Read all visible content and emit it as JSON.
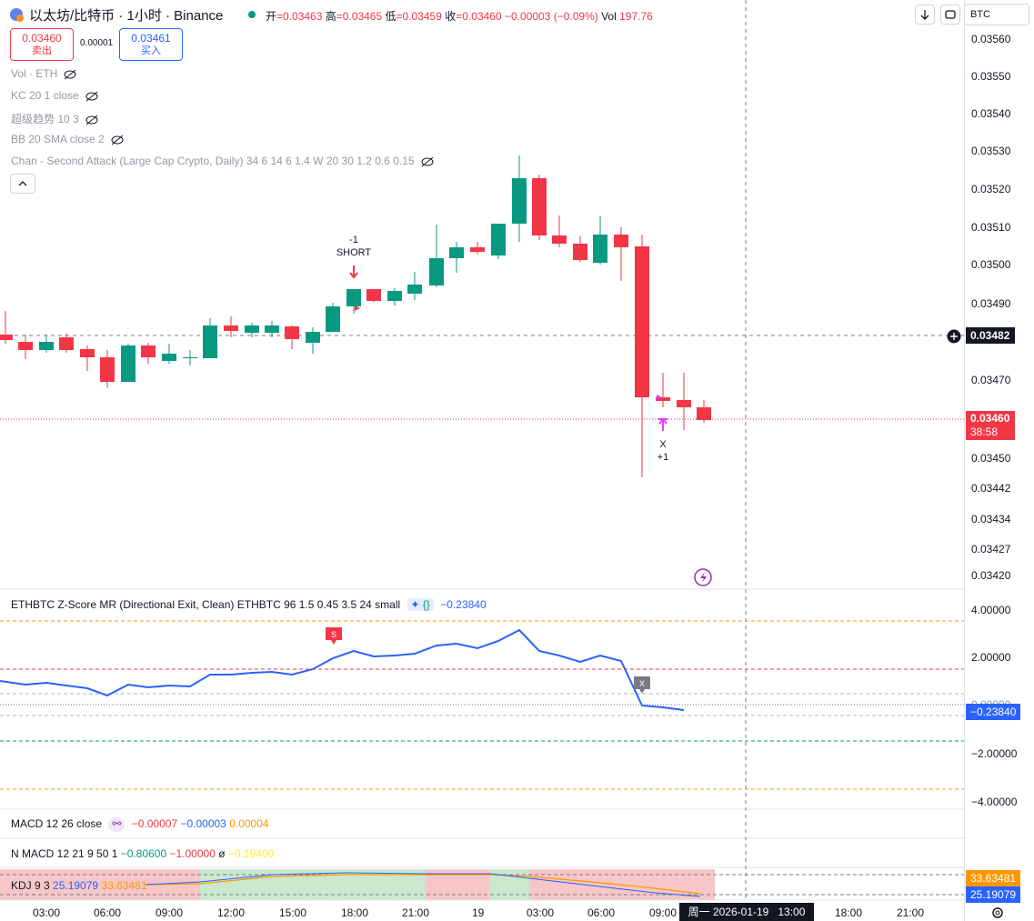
{
  "header": {
    "title": "以太坊/比特币 · 1小时 · Binance",
    "ohlc": {
      "open_label": "开",
      "open": "=0.03463",
      "high_label": "高",
      "high": "=0.03465",
      "low_label": "低",
      "low": "=0.03459",
      "close_label": "收",
      "close": "=0.03460",
      "change": "−0.00003 (−0.09%)",
      "vol_label": "Vol",
      "vol": "197.76"
    },
    "symbol_select": "BTC"
  },
  "trade": {
    "sell_price": "0.03460",
    "sell_label": "卖出",
    "spread": "0.00001",
    "buy_price": "0.03461",
    "buy_label": "买入"
  },
  "indicators": [
    "Vol · ETH",
    "KC 20 1 close",
    "超级趋势 10 3",
    "BB 20 SMA close 2",
    "Chan - Second Attack (Large Cap Crypto, Daily) 34 6 14 6 1.4 W 20 30 1.2 0.6 0.15"
  ],
  "price_axis": [
    "0.03560",
    "0.03550",
    "0.03540",
    "0.03530",
    "0.03520",
    "0.03510",
    "0.03500",
    "0.03490",
    "0.03470",
    "0.03450",
    "0.03442",
    "0.03434",
    "0.03427",
    "0.03420"
  ],
  "crosshair_price": "0.03482",
  "last_price": "0.03460",
  "countdown": "38:58",
  "signals": {
    "short_qty": "-1",
    "short_label": "SHORT",
    "exit_label": "X",
    "exit_qty": "+1"
  },
  "zscore": {
    "title": "ETHBTC Z-Score MR (Directional Exit, Clean)",
    "params": "ETHBTC 96 1.5 0.45 3.5 24 small",
    "value": "−0.23840",
    "axis": [
      "4.00000",
      "2.00000",
      "0.00000",
      "−2.00000",
      "−4.00000"
    ],
    "marker_s": "S",
    "marker_x": "X"
  },
  "macd": {
    "title": "MACD 12 26 close",
    "v1": "−0.00007",
    "v2": "−0.00003",
    "v3": "0.00004"
  },
  "nmacd": {
    "title": "N MACD 12 21 9 50 1",
    "v1": "−0.80600",
    "v2": "−1.00000",
    "sep": "ø",
    "v3": "−0.19400"
  },
  "kdj": {
    "title": "KDJ 9 3",
    "v1": "25.19079",
    "v2": "33.63481"
  },
  "time_axis": [
    "03:00",
    "06:00",
    "09:00",
    "12:00",
    "15:00",
    "18:00",
    "21:00",
    "19",
    "03:00",
    "06:00",
    "09:00",
    "18:00",
    "21:00"
  ],
  "time_cursor": "周一 2026-01-19   13:00",
  "colors": {
    "up": "#089981",
    "down": "#f23645",
    "line": "#2962ff",
    "orange": "#ff9800"
  }
}
